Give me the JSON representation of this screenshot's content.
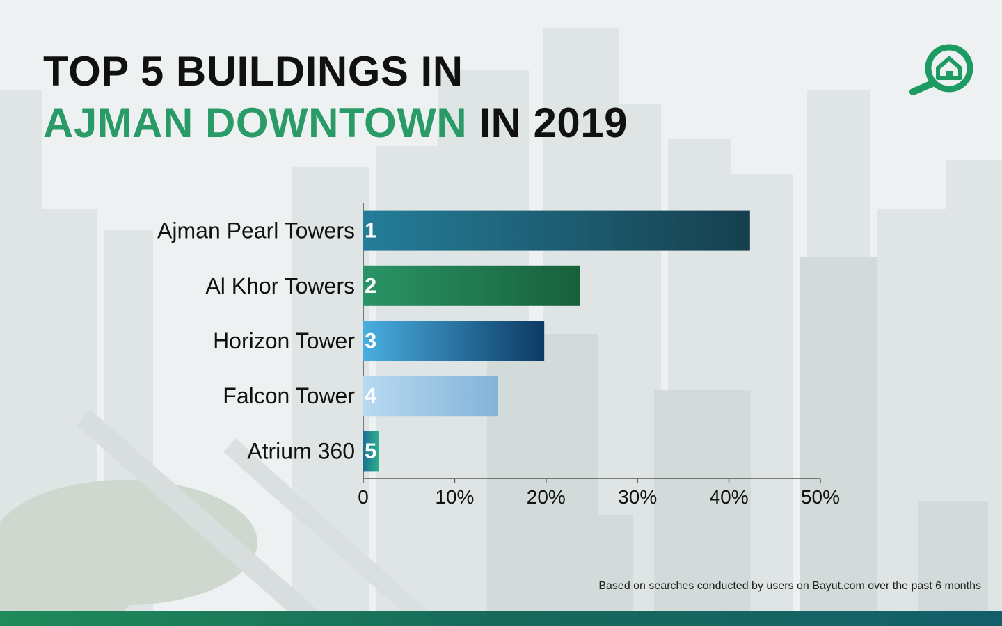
{
  "header": {
    "title_line1": "TOP 5 BUILDINGS IN",
    "title_accent": "AJMAN DOWNTOWN",
    "title_rest": "IN 2019"
  },
  "logo": {
    "icon": "magnifier-home-icon",
    "color": "#1e9b63"
  },
  "chart_data": {
    "type": "bar",
    "orientation": "horizontal",
    "title": "TOP 5 BUILDINGS IN AJMAN DOWNTOWN IN 2019",
    "xlabel": "",
    "ylabel": "",
    "xlim": [
      0,
      50
    ],
    "grid": false,
    "categories": [
      "Ajman Pearl Towers",
      "Al Khor Towers",
      "Horizon Tower",
      "Falcon Tower",
      "Atrium 360"
    ],
    "values": [
      42.3,
      23.7,
      19.8,
      14.7,
      1.7
    ],
    "ranks": [
      "1",
      "2",
      "3",
      "4",
      "5"
    ],
    "x_ticks": [
      0,
      10,
      20,
      30,
      40,
      50
    ],
    "x_tick_labels": [
      "0",
      "10%",
      "20%",
      "30%",
      "40%",
      "50%"
    ],
    "bar_colors": [
      [
        "#247d98",
        "#163f4e"
      ],
      [
        "#2a9466",
        "#17603a"
      ],
      [
        "#4aaee0",
        "#0c3a64"
      ],
      [
        "#b8daf2",
        "#82b3d8"
      ],
      [
        "#1e6f94",
        "#2bb08a"
      ]
    ]
  },
  "footnote": "Based on searches conducted by users on Bayut.com over the past 6 months"
}
